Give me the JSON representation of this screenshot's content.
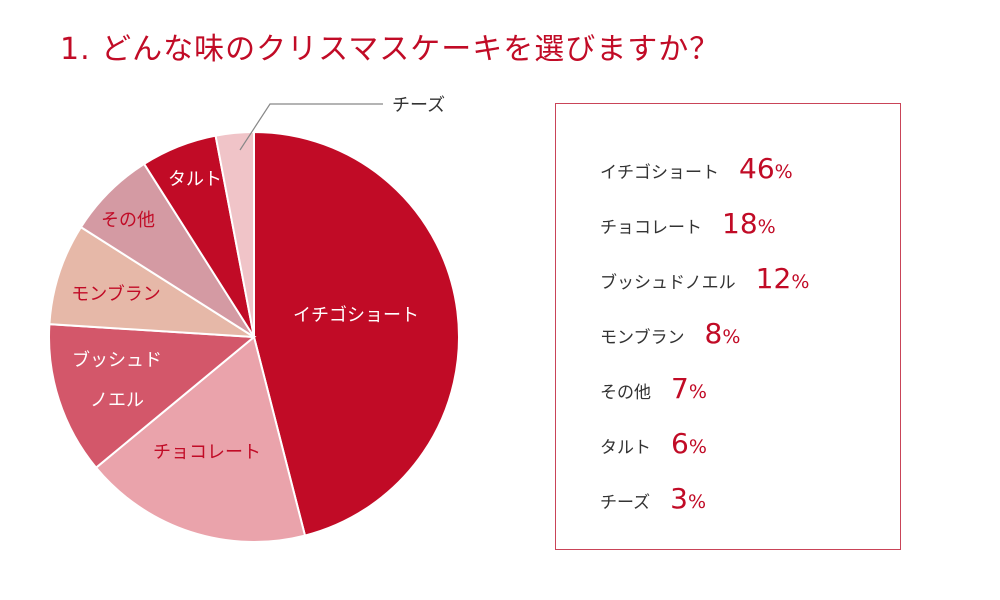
{
  "title": "1. どんな味のクリスマスケーキを選びますか？",
  "percent_sign": "%",
  "chart_data": {
    "type": "pie",
    "title": "1. どんな味のクリスマスケーキを選びますか？",
    "unit": "%",
    "slices": [
      {
        "label": "イチゴショート",
        "pie_label": "イチゴショート",
        "value": 46,
        "color": "#c10b26",
        "label_color": "#ffffff"
      },
      {
        "label": "チョコレート",
        "pie_label": "チョコレート",
        "value": 18,
        "color": "#eaa3ab",
        "label_color": "#c10b26"
      },
      {
        "label": "ブッシュドノエル",
        "pie_label": [
          "ブッシュド",
          "ノエル"
        ],
        "value": 12,
        "color": "#d3576a",
        "label_color": "#ffffff"
      },
      {
        "label": "モンブラン",
        "pie_label": "モンブラン",
        "value": 8,
        "color": "#e6b8a8",
        "label_color": "#c10b26"
      },
      {
        "label": "その他",
        "pie_label": "その他",
        "value": 7,
        "color": "#d49aa3",
        "label_color": "#c10b26"
      },
      {
        "label": "タルト",
        "pie_label": "タルト",
        "value": 6,
        "color": "#c10b26",
        "label_color": "#ffffff"
      },
      {
        "label": "チーズ",
        "pie_label": "チーズ",
        "value": 3,
        "color": "#f0c4c8",
        "label_color": "#333333"
      }
    ]
  }
}
